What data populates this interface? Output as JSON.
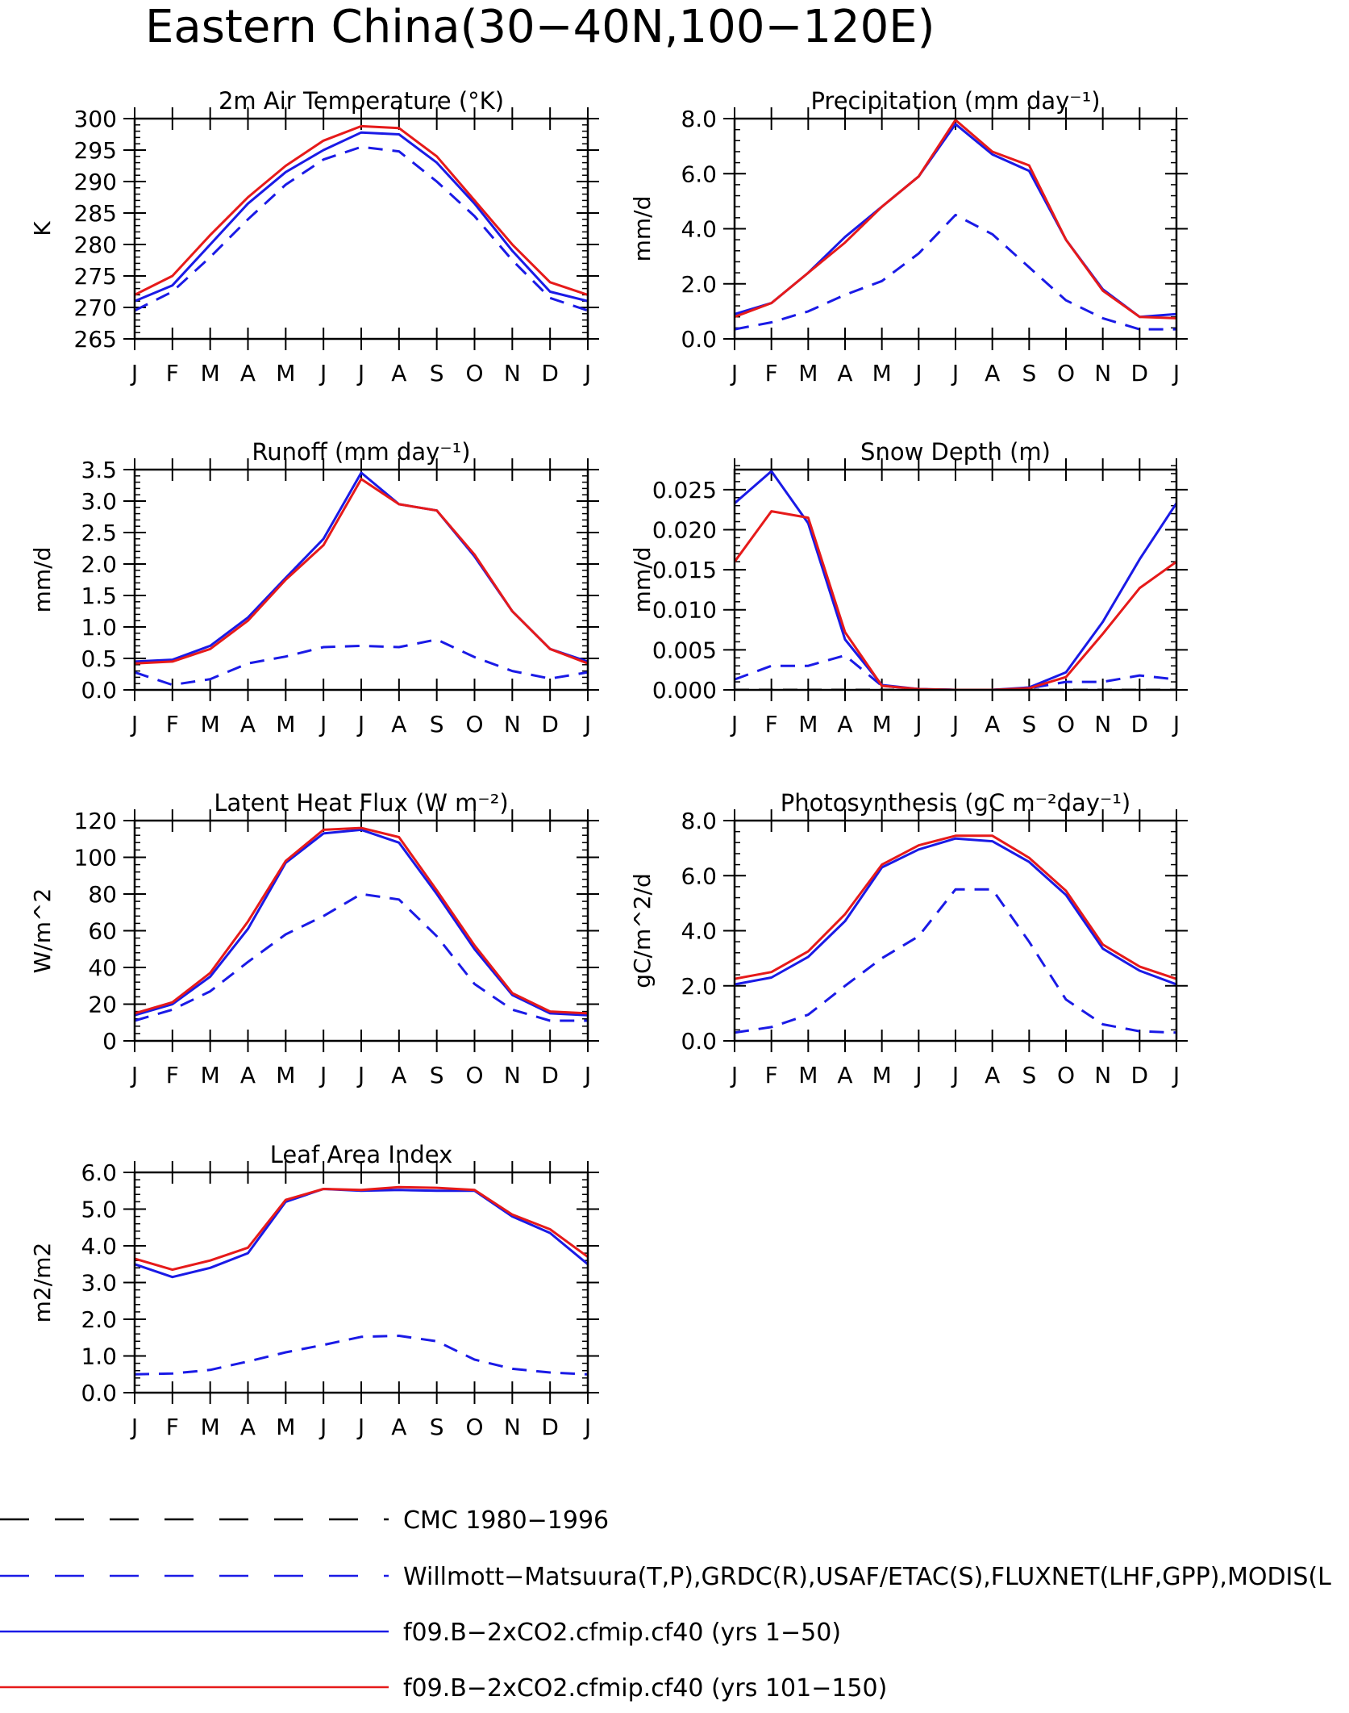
{
  "title": "Eastern China(30−40N,100−120E)",
  "colors": {
    "obs": "#1a1ae6",
    "run1": "#1a1ae6",
    "run2": "#e61a1a",
    "cmc": "#000000"
  },
  "chart_data": [
    {
      "type": "line",
      "title": "2m Air Temperature (°K)",
      "ylabel": "K",
      "ylim": [
        265,
        300
      ],
      "yticks": [
        "265",
        "270",
        "275",
        "280",
        "285",
        "290",
        "295",
        "300"
      ],
      "ytick_values": [
        265,
        270,
        275,
        280,
        285,
        290,
        295,
        300
      ],
      "ytick_minor": 1,
      "categories": [
        "J",
        "F",
        "M",
        "A",
        "M",
        "J",
        "J",
        "A",
        "S",
        "O",
        "N",
        "D",
        "J"
      ],
      "series": [
        {
          "key": "obs",
          "values": [
            269.5,
            272.5,
            278,
            284,
            289.5,
            293.5,
            295.5,
            294.8,
            290,
            284.5,
            277.5,
            271.5,
            269.5
          ]
        },
        {
          "key": "run1",
          "values": [
            271,
            273.5,
            280,
            286.5,
            291.5,
            295,
            297.8,
            297.5,
            293,
            286.5,
            279,
            272.5,
            271
          ]
        },
        {
          "key": "run2",
          "values": [
            272,
            275,
            281.5,
            287.5,
            292.5,
            296.5,
            298.8,
            298.5,
            294,
            287,
            280,
            274,
            272
          ]
        }
      ]
    },
    {
      "type": "line",
      "title": "Precipitation (mm day⁻¹)",
      "ylabel": "mm/d",
      "ylim": [
        0,
        8
      ],
      "yticks": [
        "0.0",
        "2.0",
        "4.0",
        "6.0",
        "8.0"
      ],
      "ytick_values": [
        0,
        2,
        4,
        6,
        8
      ],
      "ytick_minor": 0.4,
      "categories": [
        "J",
        "F",
        "M",
        "A",
        "M",
        "J",
        "J",
        "A",
        "S",
        "O",
        "N",
        "D",
        "J"
      ],
      "series": [
        {
          "key": "obs",
          "values": [
            0.35,
            0.6,
            1.0,
            1.6,
            2.1,
            3.1,
            4.5,
            3.8,
            2.6,
            1.4,
            0.75,
            0.35,
            0.35
          ]
        },
        {
          "key": "run1",
          "values": [
            0.9,
            1.3,
            2.4,
            3.7,
            4.8,
            5.9,
            7.8,
            6.7,
            6.1,
            3.6,
            1.8,
            0.8,
            0.9
          ]
        },
        {
          "key": "run2",
          "values": [
            0.8,
            1.3,
            2.4,
            3.5,
            4.8,
            5.9,
            7.95,
            6.8,
            6.3,
            3.6,
            1.75,
            0.8,
            0.75
          ]
        }
      ]
    },
    {
      "type": "line",
      "title": "Runoff (mm day⁻¹)",
      "ylabel": "mm/d",
      "ylim": [
        0,
        3.5
      ],
      "yticks": [
        "0.0",
        "0.5",
        "1.0",
        "1.5",
        "2.0",
        "2.5",
        "3.0",
        "3.5"
      ],
      "ytick_values": [
        0,
        0.5,
        1,
        1.5,
        2,
        2.5,
        3,
        3.5
      ],
      "ytick_minor": 0.1,
      "categories": [
        "J",
        "F",
        "M",
        "A",
        "M",
        "J",
        "J",
        "A",
        "S",
        "O",
        "N",
        "D",
        "J"
      ],
      "series": [
        {
          "key": "obs",
          "values": [
            0.28,
            0.08,
            0.17,
            0.42,
            0.53,
            0.68,
            0.7,
            0.68,
            0.8,
            0.52,
            0.3,
            0.18,
            0.28
          ]
        },
        {
          "key": "run1",
          "values": [
            0.45,
            0.48,
            0.7,
            1.15,
            1.78,
            2.4,
            3.45,
            2.95,
            2.85,
            2.12,
            1.25,
            0.65,
            0.45
          ]
        },
        {
          "key": "run2",
          "values": [
            0.42,
            0.45,
            0.65,
            1.1,
            1.75,
            2.3,
            3.35,
            2.95,
            2.85,
            2.15,
            1.25,
            0.65,
            0.42
          ]
        }
      ]
    },
    {
      "type": "line",
      "title": "Snow Depth (m)",
      "ylabel": "mm/d",
      "ylim": [
        0,
        0.0275
      ],
      "yticks": [
        "0.000",
        "0.005",
        "0.010",
        "0.015",
        "0.020",
        "0.025"
      ],
      "ytick_values": [
        0,
        0.005,
        0.01,
        0.015,
        0.02,
        0.025
      ],
      "ytick_minor": 0.001,
      "categories": [
        "J",
        "F",
        "M",
        "A",
        "M",
        "J",
        "J",
        "A",
        "S",
        "O",
        "N",
        "D",
        "J"
      ],
      "series": [
        {
          "key": "cmc",
          "values": [
            0,
            0,
            0,
            0,
            0,
            0,
            0,
            0,
            0,
            0,
            0,
            0,
            0
          ]
        },
        {
          "key": "obs",
          "values": [
            0.0013,
            0.003,
            0.003,
            0.0043,
            0.0005,
            0.0001,
            0,
            0,
            0.0002,
            0.001,
            0.001,
            0.0018,
            0.0013
          ]
        },
        {
          "key": "run1",
          "values": [
            0.0233,
            0.0273,
            0.0208,
            0.0063,
            0.0006,
            0.0001,
            0,
            0,
            0.0003,
            0.0022,
            0.0085,
            0.0163,
            0.0233
          ]
        },
        {
          "key": "run2",
          "values": [
            0.016,
            0.0223,
            0.0215,
            0.0072,
            0.0005,
            0.0001,
            0,
            0,
            0.0002,
            0.0016,
            0.007,
            0.0127,
            0.016
          ]
        }
      ]
    },
    {
      "type": "line",
      "title": "Latent Heat Flux (W m⁻²)",
      "ylabel": "W/m^2",
      "ylim": [
        0,
        120
      ],
      "yticks": [
        "0",
        "20",
        "40",
        "60",
        "80",
        "100",
        "120"
      ],
      "ytick_values": [
        0,
        20,
        40,
        60,
        80,
        100,
        120
      ],
      "ytick_minor": 4,
      "categories": [
        "J",
        "F",
        "M",
        "A",
        "M",
        "J",
        "J",
        "A",
        "S",
        "O",
        "N",
        "D",
        "J"
      ],
      "series": [
        {
          "key": "obs",
          "values": [
            11,
            17,
            27,
            43,
            58,
            68,
            80,
            77,
            57,
            31,
            17,
            11,
            11
          ]
        },
        {
          "key": "run1",
          "values": [
            14,
            20,
            35,
            61,
            97,
            113,
            115,
            108,
            80,
            50,
            25,
            15,
            14
          ]
        },
        {
          "key": "run2",
          "values": [
            15,
            21,
            37,
            65,
            98,
            115,
            116,
            111,
            82,
            52,
            26,
            16,
            15
          ]
        }
      ]
    },
    {
      "type": "line",
      "title": "Photosynthesis (gC m⁻²day⁻¹)",
      "ylabel": "gC/m^2/d",
      "ylim": [
        0,
        8
      ],
      "yticks": [
        "0.0",
        "2.0",
        "4.0",
        "6.0",
        "8.0"
      ],
      "ytick_values": [
        0,
        2,
        4,
        6,
        8
      ],
      "ytick_minor": 0.4,
      "categories": [
        "J",
        "F",
        "M",
        "A",
        "M",
        "J",
        "J",
        "A",
        "S",
        "O",
        "N",
        "D",
        "J"
      ],
      "series": [
        {
          "key": "obs",
          "values": [
            0.3,
            0.5,
            0.95,
            2.0,
            3.0,
            3.8,
            5.5,
            5.5,
            3.6,
            1.5,
            0.6,
            0.35,
            0.3
          ]
        },
        {
          "key": "run1",
          "values": [
            2.05,
            2.3,
            3.05,
            4.35,
            6.3,
            6.95,
            7.35,
            7.25,
            6.5,
            5.3,
            3.35,
            2.55,
            2.05
          ]
        },
        {
          "key": "run2",
          "values": [
            2.25,
            2.5,
            3.25,
            4.6,
            6.4,
            7.1,
            7.45,
            7.45,
            6.65,
            5.45,
            3.5,
            2.7,
            2.25
          ]
        }
      ]
    },
    {
      "type": "line",
      "title": "Leaf Area Index",
      "ylabel": "m2/m2",
      "ylim": [
        0,
        6
      ],
      "yticks": [
        "0.0",
        "1.0",
        "2.0",
        "3.0",
        "4.0",
        "5.0",
        "6.0"
      ],
      "ytick_values": [
        0,
        1,
        2,
        3,
        4,
        5,
        6
      ],
      "ytick_minor": 0.2,
      "categories": [
        "J",
        "F",
        "M",
        "A",
        "M",
        "J",
        "J",
        "A",
        "S",
        "O",
        "N",
        "D",
        "J"
      ],
      "series": [
        {
          "key": "obs",
          "values": [
            0.5,
            0.52,
            0.62,
            0.85,
            1.1,
            1.3,
            1.52,
            1.55,
            1.4,
            0.9,
            0.65,
            0.55,
            0.5
          ]
        },
        {
          "key": "run1",
          "values": [
            3.5,
            3.15,
            3.4,
            3.8,
            5.2,
            5.55,
            5.5,
            5.52,
            5.5,
            5.5,
            4.8,
            4.35,
            3.5
          ]
        },
        {
          "key": "run2",
          "values": [
            3.65,
            3.35,
            3.6,
            3.95,
            5.25,
            5.55,
            5.52,
            5.6,
            5.58,
            5.52,
            4.85,
            4.45,
            3.7
          ]
        }
      ]
    }
  ],
  "legend": [
    {
      "key": "cmc",
      "style": "dash",
      "label": "CMC 1980−1996"
    },
    {
      "key": "obs",
      "style": "dash",
      "label": "Willmott−Matsuura(T,P),GRDC(R),USAF/ETAC(S),FLUXNET(LHF,GPP),MODIS(L"
    },
    {
      "key": "run1",
      "style": "solid",
      "label": "f09.B−2xCO2.cfmip.cf40 (yrs 1−50)"
    },
    {
      "key": "run2",
      "style": "solid",
      "label": "f09.B−2xCO2.cfmip.cf40 (yrs 101−150)"
    }
  ]
}
